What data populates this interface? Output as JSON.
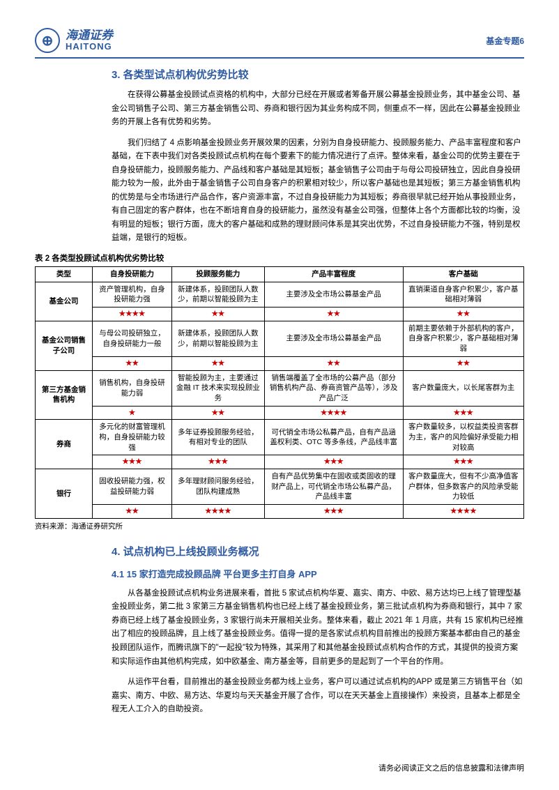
{
  "header": {
    "logo_cn": "海通证券",
    "logo_en": "HAITONG",
    "corner": "基金专题6"
  },
  "section3": {
    "title": "3. 各类型试点机构优劣势比较",
    "p1": "在获得公募基金投顾试点资格的机构中，大部分已经在开展或者筹备开展公募基金投顾业务，其中基金公司、基金公司销售子公司、第三方基金销售公司、券商和银行因为其业务构成不同，侧重点不一样，因此在公募基金投顾业务的开展上各有优势和劣势。",
    "p2": "我们归结了 4 点影响基金投顾业务开展效果的因素，分别为自身投研能力、投顾服务能力、产品丰富程度和客户基础，在下表中我们对各类投顾试点机构在每个要素下的能力情况进行了点评。整体来看，基金公司的优势主要在于自身投研能力，投顾服务能力、产品线和客户基础是其短板；基金销售子公司由于与母公司投研独立，因此自身投研能力较为一般，此外由于基金销售子公司自身客户的积累相对较少，所以客户基础也是其短板；第三方基金销售机构的优势是与全市场进行产品合作，客户资源丰富，不过自身投研能力为其短板；券商很早就已经开始从事投顾业务，有自己固定的客户群体，也在不断培育自身的投研能力，虽然没有基金公司强，但整体上各个方面都比较的均衡，没有明显的短板；银行方面，庞大的客户基础和成熟的理财顾问体系是其突出优势，不过自身投研能力不强，特别是权益端，是银行的短板。"
  },
  "table": {
    "title": "表 2 各类型投顾试点机构优劣势比较",
    "headers": [
      "类型",
      "自身投研能力",
      "投顾服务能力",
      "产品丰富程度",
      "客户基础"
    ],
    "rows": [
      {
        "label": "基金公司",
        "cells": [
          "资产管理机构，自身投研能力强",
          "新建体系，投顾团队人数少，前期以智能投顾为主",
          "主要涉及全市场公募基金产品",
          "直销渠道自身客户积累少，客户基础相对薄弱"
        ],
        "stars": [
          "★★★★",
          "★★",
          "★★",
          "★★"
        ]
      },
      {
        "label": "基金公司销售子公司",
        "cells": [
          "与母公司投研独立，自身投研能力一般",
          "新建体系，投顾团队人数少，前期以智能投顾为主",
          "主要涉及全市场公募基金产品",
          "前期主要依赖于外部机构的客户，自身客户积累少，客户基础相对薄弱"
        ],
        "stars": [
          "★★",
          "★★",
          "★★",
          "★★"
        ]
      },
      {
        "label": "第三方基金销售机构",
        "cells": [
          "销售机构，自身投研能力弱",
          "智能投顾为主，主要通过金融 IT 技术来实现投顾业务",
          "销售端覆盖了全市场的公募产品（部分销售机构产品、券商资管产品等），涉及产品广泛",
          "客户数量庞大，以长尾客群为主"
        ],
        "stars": [
          "★",
          "★★",
          "★★★★",
          "★★★"
        ]
      },
      {
        "label": "券商",
        "cells": [
          "多元化的财富管理机构，自身投研能力较强",
          "多年证券投顾服务经验，有相对专业的团队",
          "可代销全市场公私募产品，自有产品涵盖权利类、OTC 等多条线，产品线丰富",
          "客户数量较多，以权益类投资客群为主，客户的风险偏好承受能力相对较高"
        ],
        "stars": [
          "★★★",
          "★★★",
          "★★★",
          "★★★"
        ]
      },
      {
        "label": "银行",
        "cells": [
          "固收投研能力强，权益投研能力弱",
          "多年理财顾问服务经验，团队构建成熟",
          "自有产品优势集中在固收或类固收的理财产品上，可代销全市场公私募产品，产品线丰富",
          "客户数量庞大，但有不少高净值客户群体，但多数客户的风险承受能力较低"
        ],
        "stars": [
          "★★",
          "★★★★",
          "★★★",
          "★★★★"
        ]
      }
    ],
    "source": "资料来源：海通证券研究所"
  },
  "section4": {
    "title": "4. 试点机构已上线投顾业务概况",
    "sub": "4.1 15 家打造完成投顾品牌 平台更多主打自身 APP",
    "p1": "从各基金投顾试点机构业务进展来看，首批 5 家试点机构华夏、嘉实、南方、中欧、易方达均已上线了管理型基金投顾业务，第二批 3 家第三方基金销售机构也已经上线了基金投顾业务，第三批试点机构为券商和银行，其中 7 家券商已经上线了基金投顾业务，3 家银行尚未开展相关业务。整体来看，截止 2021 年 1 月底，共有 15 家机构已经推出了相应的投顾品牌，且上线了基金投顾业务。值得一提的是各家试点机构目前推出的投顾方案基本都由自己的基金投顾团队运作，而腾讯旗下的\"一起投\"较为特殊，其采用了和其他基金投顾试点机构合作的方式，其提供的投资方案和实际运作由其他机构完成，如中欧基金、南方基金等，目前更多的是起到了一个平台的作用。",
    "p2": "从运作平台看，目前推出的基金投顾业务都为线上业务，客户可以通过试点机构的APP 或是第三方销售平台（如嘉实、南方、中欧、易方达、华夏均与天天基金开展了合作，可以在天天基金上直接操作）来投资，且基本上都是全程无人工介入的自助投资。"
  },
  "footer": "请务必阅读正文之后的信息披露和法律声明"
}
